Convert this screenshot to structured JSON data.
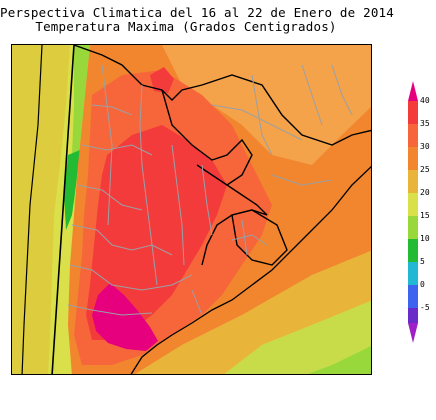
{
  "header": {
    "title_line1": "Perspectiva Climatica del 16 al 22 de Enero de 2014",
    "title_line2": "Temperatura Maxima (Grados Centigrados)"
  },
  "colorbar": {
    "ticks": [
      "40",
      "35",
      "30",
      "25",
      "20",
      "15",
      "10",
      "5",
      "0",
      "-5"
    ],
    "colors": {
      "ge40": "#e6007e",
      "35-40": "#f43b3b",
      "30-35": "#f7663a",
      "25-30": "#f1862e",
      "20-25": "#e9b43a",
      "15-20": "#d9e04a",
      "10-15": "#99d83a",
      "5-10": "#22bb33",
      "0-5": "#21b8d4",
      "-5-0": "#3e63ef",
      "lt-5": "#6a2cc9",
      "le-5": "#a020c8"
    }
  },
  "map": {
    "region": "Argentina, Chile, Uruguay, Paraguay, southern Brazil",
    "ocean_color": "#d9e04a",
    "border_color": "#000000",
    "province_border_color": "#9aa0a6"
  }
}
